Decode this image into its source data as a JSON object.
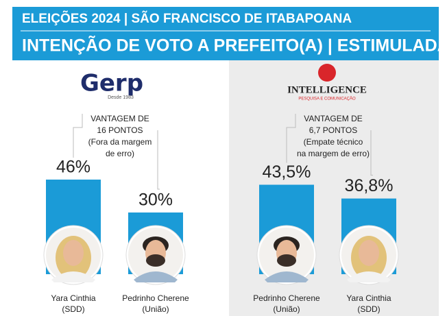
{
  "header": {
    "title": "ELEIÇÕES 2024 | SÃO FRANCISCO DE ITABAPOANA",
    "subtitle": "INTENÇÃO DE VOTO A PREFEITO(A) | ESTIMULADA"
  },
  "chart_data": [
    {
      "type": "bar",
      "logo": "Gerp",
      "logo_tagline": "Desde 1983",
      "annotation": [
        "VANTAGEM DE",
        "16 PONTOS",
        "(Fora da margem",
        "de erro)"
      ],
      "categories": [
        "Yara Cinthia",
        "Pedrinho Cherene"
      ],
      "parties": [
        "(SDD)",
        "(União)"
      ],
      "values": [
        46,
        30
      ],
      "value_labels": [
        "46%",
        "30%"
      ],
      "color": "#1b9bd7"
    },
    {
      "type": "bar",
      "logo": "INTELLIGENCE",
      "logo_tagline": "PESQUISA E COMUNICAÇÃO",
      "annotation": [
        "VANTAGEM DE",
        "6,7 PONTOS",
        "(Empate técnico",
        "na margem de erro)"
      ],
      "categories": [
        "Pedrinho Cherene",
        "Yara Cinthia"
      ],
      "parties": [
        "(União)",
        "(SDD)"
      ],
      "values": [
        43.5,
        36.8
      ],
      "value_labels": [
        "43,5%",
        "36,8%"
      ],
      "color": "#1b9bd7"
    }
  ]
}
